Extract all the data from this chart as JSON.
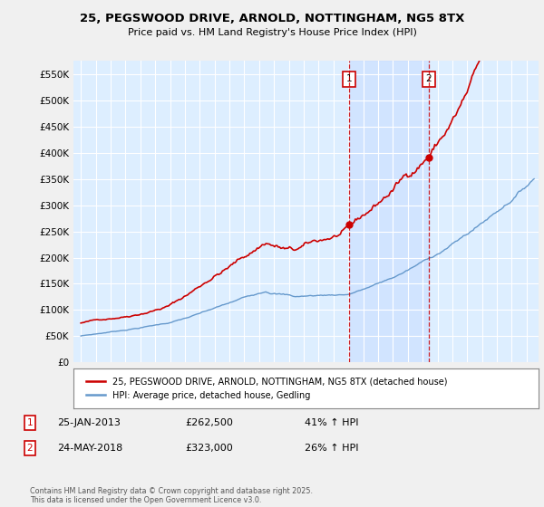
{
  "title": "25, PEGSWOOD DRIVE, ARNOLD, NOTTINGHAM, NG5 8TX",
  "subtitle": "Price paid vs. HM Land Registry's House Price Index (HPI)",
  "ylabel_ticks": [
    "£0",
    "£50K",
    "£100K",
    "£150K",
    "£200K",
    "£250K",
    "£300K",
    "£350K",
    "£400K",
    "£450K",
    "£500K",
    "£550K"
  ],
  "ylim": [
    0,
    575000
  ],
  "ytick_vals": [
    0,
    50000,
    100000,
    150000,
    200000,
    250000,
    300000,
    350000,
    400000,
    450000,
    500000,
    550000
  ],
  "legend_label_red": "25, PEGSWOOD DRIVE, ARNOLD, NOTTINGHAM, NG5 8TX (detached house)",
  "legend_label_blue": "HPI: Average price, detached house, Gedling",
  "marker1_date_str": "25-JAN-2013",
  "marker1_price": "£262,500",
  "marker1_hpi": "41% ↑ HPI",
  "marker2_date_str": "24-MAY-2018",
  "marker2_price": "£323,000",
  "marker2_hpi": "26% ↑ HPI",
  "footer": "Contains HM Land Registry data © Crown copyright and database right 2025.\nThis data is licensed under the Open Government Licence v3.0.",
  "red_color": "#cc0000",
  "blue_color": "#6699cc",
  "bg_color": "#ddeeff",
  "shade_color": "#cce0ff",
  "grid_color": "#ffffff",
  "vline_color": "#cc0000",
  "year_1": 2013.07,
  "year_2": 2018.39,
  "price_1": 262500,
  "price_2": 323000
}
